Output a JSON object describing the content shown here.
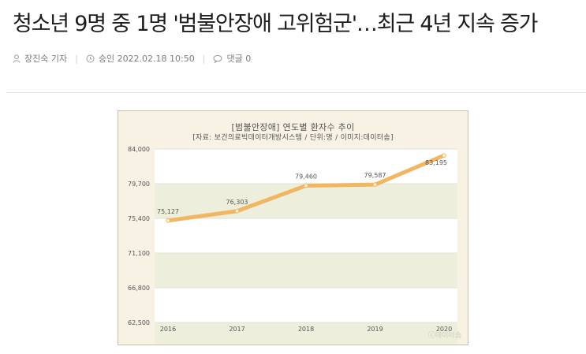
{
  "article": {
    "headline": "청소년 9명 중 1명 '범불안장애 고위험군'…최근 4년 지속 증가",
    "author": "장진숙 기자",
    "approved": "승인 2022.02.18 10:50",
    "comments": "댓글 0"
  },
  "icons": {
    "author": "person-icon",
    "time": "clock-icon",
    "comments": "speech-bubble-icon"
  },
  "colors": {
    "line": "#f0b662",
    "band": "#eeeedd",
    "figure_bg": "#f7f2e4"
  },
  "chart_data": {
    "type": "line",
    "title": "[범불안장애] 연도별 환자수 추이",
    "subtitle": "[자료: 보건의료빅데이터개방시스템 / 단위:명 / 이미지:데이터솜]",
    "categories": [
      "2016",
      "2017",
      "2018",
      "2019",
      "2020"
    ],
    "series": [
      {
        "values": [
          75127,
          76303,
          79460,
          79587,
          83195
        ]
      }
    ],
    "value_labels": [
      "75,127",
      "76,303",
      "79,460",
      "79,587",
      "83,195"
    ],
    "yticks": [
      "62,500",
      "66,800",
      "71,100",
      "75,400",
      "79,700",
      "84,000"
    ],
    "ylim": [
      62500,
      84000
    ],
    "grid": true,
    "legend": "none"
  },
  "watermark": "ⓒ데이터솜"
}
